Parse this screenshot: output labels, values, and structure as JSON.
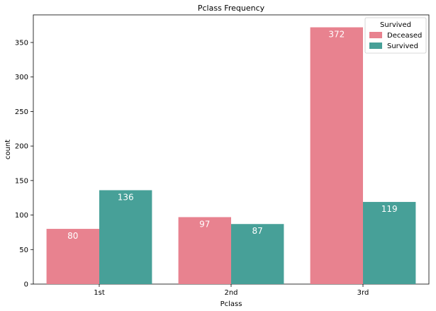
{
  "chart_data": {
    "type": "bar",
    "title": "Pclass Frequency",
    "xlabel": "Pclass",
    "ylabel": "count",
    "categories": [
      "1st",
      "2nd",
      "3rd"
    ],
    "series": [
      {
        "name": "Deceased",
        "color": "#e8828f",
        "values": [
          80,
          97,
          372
        ]
      },
      {
        "name": "Survived",
        "color": "#47a098",
        "values": [
          136,
          87,
          119
        ]
      }
    ],
    "data_labels": [
      [
        "80",
        "97",
        "372"
      ],
      [
        "136",
        "87",
        "119"
      ]
    ],
    "ylim": [
      0,
      390
    ],
    "yticks": [
      0,
      50,
      100,
      150,
      200,
      250,
      300,
      350
    ],
    "ytick_labels": [
      "0",
      "50",
      "100",
      "150",
      "200",
      "250",
      "300",
      "350"
    ],
    "grid": false,
    "legend": {
      "title": "Survived",
      "placement": "top-right",
      "entries": [
        "Deceased",
        "Survived"
      ]
    }
  }
}
